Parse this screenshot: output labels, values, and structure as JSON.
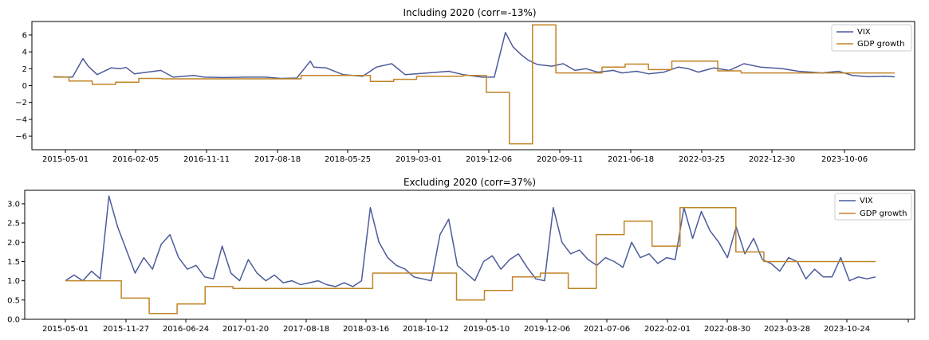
{
  "chart_data": [
    {
      "type": "line",
      "title": "Including 2020 (corr=-13%)",
      "xlabel": "",
      "ylabel": "",
      "ylim": [
        -7.6,
        7.6
      ],
      "yticks": [
        -6,
        -4,
        -2,
        0,
        2,
        4,
        6
      ],
      "xtick_labels": [
        "2015-05-01",
        "2016-02-05",
        "2016-11-11",
        "2017-08-18",
        "2018-05-25",
        "2019-03-01",
        "2019-12-06",
        "2020-09-11",
        "2021-06-18",
        "2022-03-25",
        "2022-12-30",
        "2023-10-06"
      ],
      "legend_position": "top-right",
      "series": [
        {
          "name": "VIX",
          "color": "#4c5b9b",
          "x": [
            "2015-05-01",
            "2015-07-15",
            "2015-08-25",
            "2015-09-15",
            "2015-10-20",
            "2015-12-14",
            "2016-01-20",
            "2016-02-11",
            "2016-03-15",
            "2016-06-27",
            "2016-08-15",
            "2016-11-04",
            "2016-12-15",
            "2017-03-01",
            "2017-06-01",
            "2017-08-11",
            "2017-10-15",
            "2017-12-15",
            "2018-02-06",
            "2018-02-20",
            "2018-04-10",
            "2018-06-15",
            "2018-09-01",
            "2018-10-25",
            "2018-12-24",
            "2019-02-15",
            "2019-05-15",
            "2019-08-06",
            "2019-10-01",
            "2019-12-15",
            "2020-02-01",
            "2020-03-16",
            "2020-04-15",
            "2020-05-20",
            "2020-06-15",
            "2020-07-20",
            "2020-09-15",
            "2020-10-30",
            "2020-12-15",
            "2021-01-28",
            "2021-03-15",
            "2021-05-15",
            "2021-06-18",
            "2021-08-15",
            "2021-10-01",
            "2021-12-01",
            "2022-01-27",
            "2022-03-07",
            "2022-04-15",
            "2022-06-15",
            "2022-08-15",
            "2022-10-12",
            "2022-12-15",
            "2023-03-13",
            "2023-05-15",
            "2023-08-15",
            "2023-10-20",
            "2023-12-15",
            "2024-02-15",
            "2024-04-15",
            "2024-05-28"
          ],
          "values": [
            1.05,
            1.0,
            3.2,
            2.3,
            1.3,
            2.1,
            2.0,
            2.15,
            1.4,
            1.8,
            1.0,
            1.2,
            1.0,
            0.95,
            1.0,
            1.0,
            0.85,
            0.9,
            2.9,
            2.2,
            2.1,
            1.3,
            1.1,
            2.2,
            2.6,
            1.3,
            1.5,
            1.7,
            1.3,
            1.0,
            1.0,
            6.3,
            4.6,
            3.6,
            3.0,
            2.5,
            2.3,
            2.6,
            1.8,
            2.0,
            1.6,
            1.8,
            1.5,
            1.7,
            1.4,
            1.6,
            2.2,
            2.0,
            1.6,
            2.1,
            1.8,
            2.6,
            2.2,
            2.0,
            1.7,
            1.5,
            1.7,
            1.2,
            1.05,
            1.1,
            1.05
          ]
        },
        {
          "name": "GDP growth",
          "color": "#c08426",
          "step": true,
          "x": [
            "2015-05-01",
            "2015-07-01",
            "2015-10-01",
            "2016-01-01",
            "2016-04-01",
            "2016-07-01",
            "2016-10-01",
            "2017-01-01",
            "2017-04-01",
            "2017-07-01",
            "2017-10-01",
            "2018-01-01",
            "2018-04-01",
            "2018-07-01",
            "2018-10-01",
            "2019-01-01",
            "2019-04-01",
            "2019-07-01",
            "2019-10-01",
            "2020-01-01",
            "2020-04-01",
            "2020-07-01",
            "2020-10-01",
            "2021-01-01",
            "2021-04-01",
            "2021-07-01",
            "2021-10-01",
            "2022-01-01",
            "2022-04-01",
            "2022-07-01",
            "2022-10-01",
            "2023-01-01",
            "2023-04-01",
            "2023-07-01",
            "2023-10-01",
            "2024-01-01",
            "2024-04-01",
            "2024-05-28"
          ],
          "values": [
            1.0,
            0.55,
            0.15,
            0.4,
            0.85,
            0.8,
            0.8,
            0.8,
            0.8,
            0.8,
            0.8,
            1.2,
            1.2,
            1.2,
            0.5,
            0.75,
            1.1,
            1.1,
            1.2,
            -0.8,
            -6.9,
            7.2,
            1.5,
            1.5,
            2.2,
            2.55,
            1.9,
            2.9,
            2.9,
            1.75,
            1.5,
            1.5,
            1.5,
            1.5,
            1.5,
            1.5,
            1.5,
            1.5
          ]
        }
      ]
    },
    {
      "type": "line",
      "title": "Excluding 2020 (corr=37%)",
      "xlabel": "",
      "ylabel": "",
      "ylim": [
        0.0,
        3.35
      ],
      "yticks": [
        0.0,
        0.5,
        1.0,
        1.5,
        2.0,
        2.5,
        3.0
      ],
      "xtick_labels": [
        "2015-05-01",
        "2015-11-27",
        "2016-06-24",
        "2017-01-20",
        "2017-08-18",
        "2018-03-16",
        "2018-10-12",
        "2019-05-10",
        "2019-12-06",
        "2021-07-06",
        "2022-02-01",
        "2022-08-30",
        "2023-03-28",
        "2023-10-24",
        ""
      ],
      "legend_position": "top-right",
      "series": [
        {
          "name": "VIX",
          "values": [
            1.0,
            1.15,
            1.0,
            1.25,
            1.05,
            3.2,
            2.4,
            1.8,
            1.2,
            1.6,
            1.3,
            1.95,
            2.2,
            1.6,
            1.3,
            1.4,
            1.1,
            1.05,
            1.9,
            1.2,
            1.0,
            1.55,
            1.2,
            1.0,
            1.15,
            0.95,
            1.0,
            0.9,
            0.95,
            1.0,
            0.9,
            0.85,
            0.95,
            0.85,
            1.0,
            2.9,
            2.0,
            1.6,
            1.4,
            1.3,
            1.1,
            1.05,
            1.0,
            2.2,
            2.6,
            1.4,
            1.2,
            1.0,
            1.5,
            1.65,
            1.3,
            1.55,
            1.7,
            1.35,
            1.05,
            1.0,
            2.9,
            2.0,
            1.7,
            1.8,
            1.55,
            1.4,
            1.6,
            1.5,
            1.35,
            2.0,
            1.6,
            1.7,
            1.45,
            1.6,
            1.55,
            2.9,
            2.1,
            2.8,
            2.3,
            2.0,
            1.6,
            2.4,
            1.7,
            2.1,
            1.55,
            1.45,
            1.25,
            1.6,
            1.5,
            1.05,
            1.3,
            1.1,
            1.1,
            1.6,
            1.0,
            1.1,
            1.05,
            1.1
          ],
          "color": "#4c5b9b"
        },
        {
          "name": "GDP growth",
          "values": [
            1.0,
            1.0,
            0.55,
            0.15,
            0.4,
            0.85,
            0.8,
            0.8,
            0.8,
            0.8,
            0.8,
            1.2,
            1.2,
            1.2,
            0.5,
            0.75,
            1.1,
            1.2,
            0.8,
            2.2,
            2.55,
            1.9,
            2.9,
            2.9,
            1.75,
            1.5,
            1.5,
            1.5,
            1.5,
            1.5
          ],
          "step": true,
          "color": "#c08426"
        }
      ]
    }
  ]
}
